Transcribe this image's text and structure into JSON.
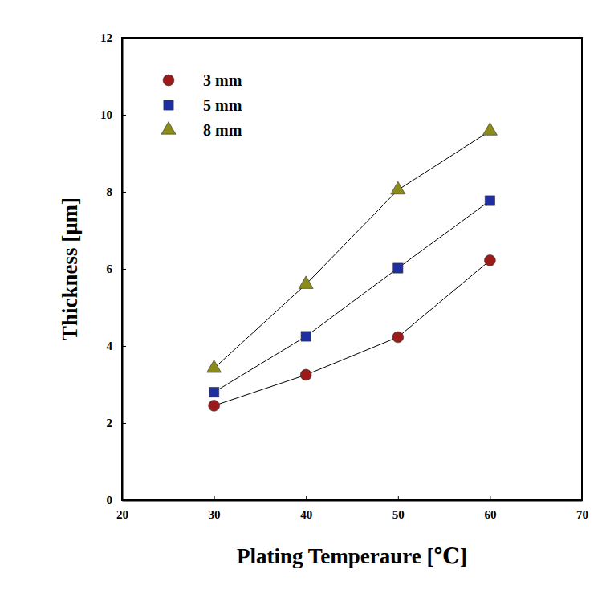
{
  "chart_data": {
    "type": "line",
    "xlabel": "Plating Temperaure [℃]",
    "ylabel": "Thickness [μm]",
    "x": [
      30,
      40,
      50,
      60
    ],
    "series": [
      {
        "name": "3 mm",
        "color": "#9b1b1b",
        "marker": "circle",
        "line_style": "solid",
        "values": [
          2.45,
          3.25,
          4.23,
          6.22
        ]
      },
      {
        "name": "5 mm",
        "color": "#1f2f9f",
        "marker": "square",
        "line_style": "solid",
        "values": [
          2.8,
          4.25,
          6.02,
          7.77
        ]
      },
      {
        "name": "8 mm",
        "color": "#8b8b1a",
        "marker": "triangle",
        "line_style": "solid",
        "values": [
          3.42,
          5.6,
          8.05,
          9.58
        ]
      }
    ],
    "xlim": [
      20,
      70
    ],
    "xticks": [
      20,
      30,
      40,
      50,
      60,
      70
    ],
    "ylim": [
      0,
      12
    ],
    "yticks": [
      0,
      2,
      4,
      6,
      8,
      10,
      12
    ],
    "grid": false,
    "legend": "upper left"
  }
}
